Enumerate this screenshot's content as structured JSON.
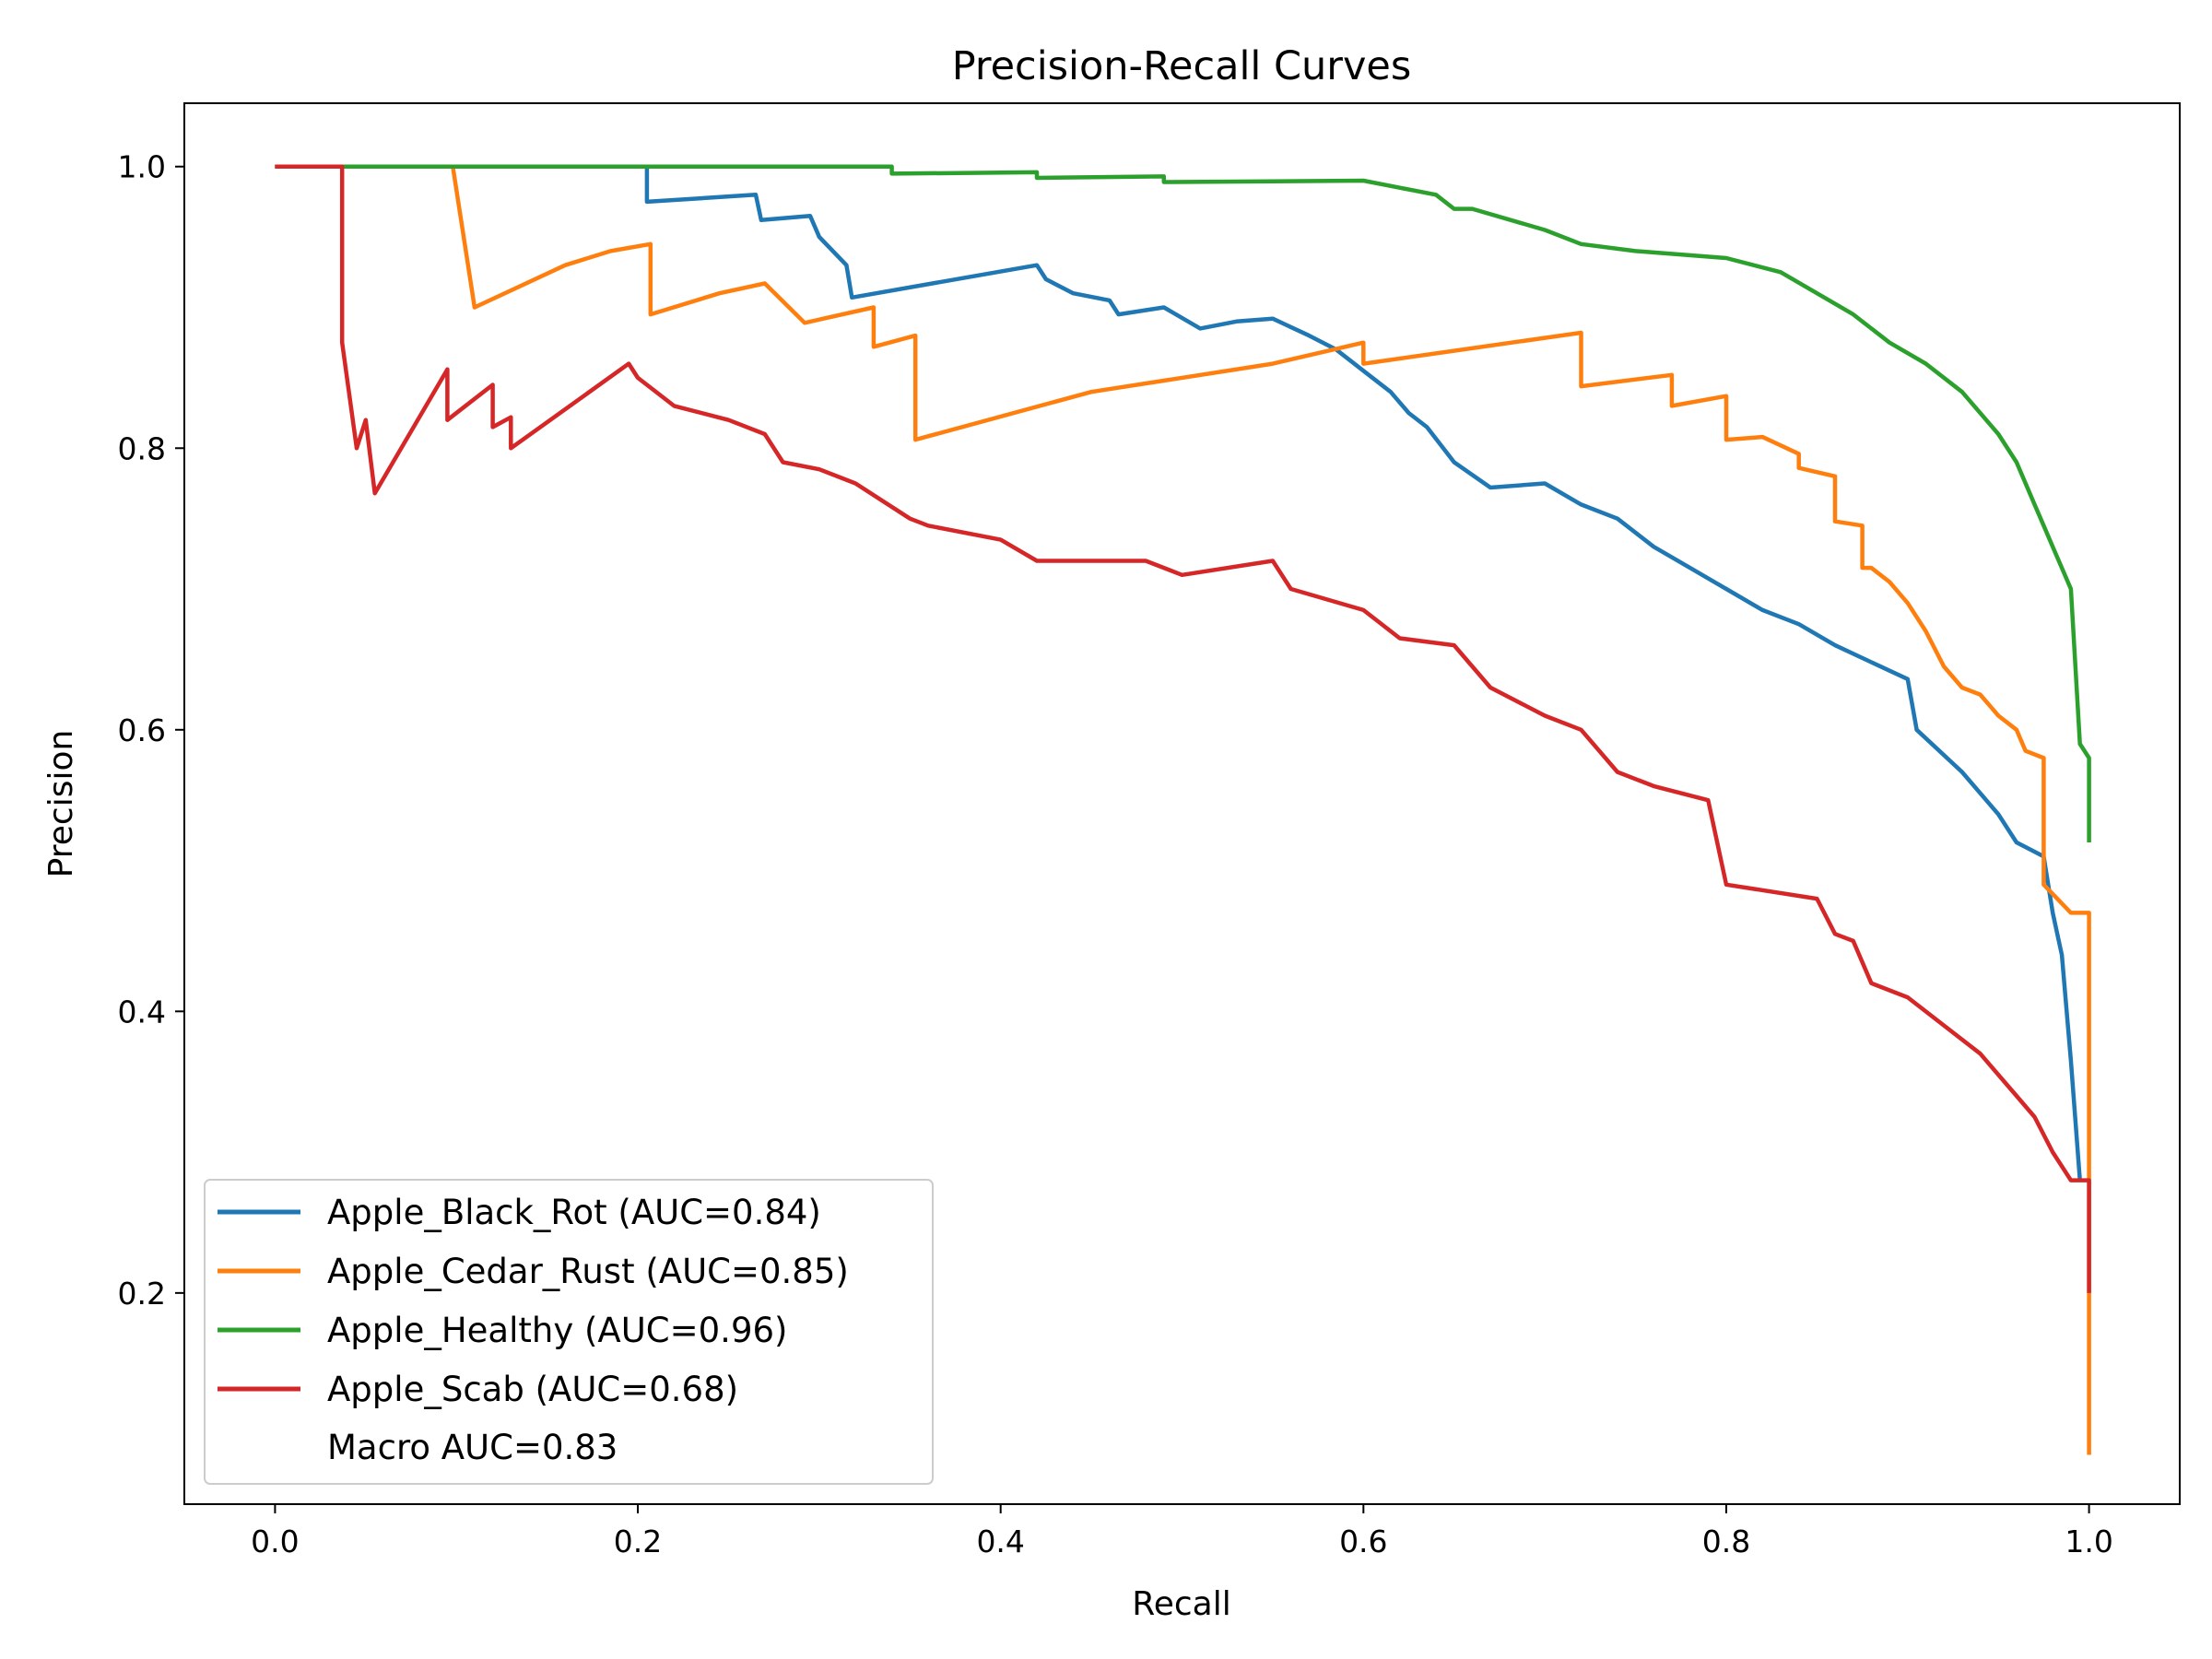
{
  "chart_data": {
    "type": "line",
    "title": "Precision-Recall Curves",
    "xlabel": "Recall",
    "ylabel": "Precision",
    "xlim": [
      -0.05,
      1.05
    ],
    "ylim": [
      0.05,
      1.045
    ],
    "xticks": [
      0.0,
      0.2,
      0.4,
      0.6,
      0.8,
      1.0
    ],
    "xtick_labels": [
      "0.0",
      "0.2",
      "0.4",
      "0.6",
      "0.8",
      "1.0"
    ],
    "yticks": [
      0.2,
      0.4,
      0.6,
      0.8,
      1.0
    ],
    "ytick_labels": [
      "0.2",
      "0.4",
      "0.6",
      "0.8",
      "1.0"
    ],
    "grid": false,
    "legend_position": "lower-left",
    "note": "Macro AUC=0.83",
    "series": [
      {
        "name": "Apple_Black_Rot (AUC=0.84)",
        "color": "#1f77b4",
        "x": [
          0.0,
          0.205,
          0.205,
          0.265,
          0.268,
          0.295,
          0.3,
          0.315,
          0.318,
          0.42,
          0.425,
          0.44,
          0.46,
          0.465,
          0.49,
          0.51,
          0.53,
          0.55,
          0.57,
          0.585,
          0.6,
          0.615,
          0.625,
          0.635,
          0.65,
          0.67,
          0.7,
          0.72,
          0.74,
          0.76,
          0.78,
          0.8,
          0.82,
          0.84,
          0.86,
          0.88,
          0.9,
          0.905,
          0.93,
          0.95,
          0.96,
          0.975,
          0.98,
          0.985,
          0.99,
          0.995
        ],
        "y": [
          1.0,
          1.0,
          0.975,
          0.98,
          0.962,
          0.965,
          0.95,
          0.93,
          0.907,
          0.93,
          0.92,
          0.91,
          0.905,
          0.895,
          0.9,
          0.885,
          0.89,
          0.892,
          0.88,
          0.87,
          0.855,
          0.84,
          0.825,
          0.815,
          0.79,
          0.772,
          0.775,
          0.76,
          0.75,
          0.73,
          0.715,
          0.7,
          0.685,
          0.675,
          0.66,
          0.648,
          0.636,
          0.6,
          0.57,
          0.54,
          0.52,
          0.51,
          0.47,
          0.44,
          0.365,
          0.28
        ]
      },
      {
        "name": "Apple_Cedar_Rust (AUC=0.85)",
        "color": "#ff7f0e",
        "x": [
          0.0,
          0.098,
          0.11,
          0.16,
          0.185,
          0.207,
          0.207,
          0.245,
          0.27,
          0.292,
          0.33,
          0.33,
          0.353,
          0.353,
          0.45,
          0.55,
          0.6,
          0.6,
          0.72,
          0.72,
          0.77,
          0.77,
          0.8,
          0.8,
          0.82,
          0.84,
          0.84,
          0.86,
          0.86,
          0.875,
          0.875,
          0.88,
          0.89,
          0.9,
          0.91,
          0.92,
          0.93,
          0.94,
          0.95,
          0.96,
          0.965,
          0.975,
          0.975,
          0.99,
          1.0,
          1.0
        ],
        "y": [
          1.0,
          1.0,
          0.9,
          0.93,
          0.94,
          0.945,
          0.895,
          0.91,
          0.917,
          0.889,
          0.9,
          0.872,
          0.88,
          0.806,
          0.84,
          0.86,
          0.875,
          0.86,
          0.882,
          0.844,
          0.852,
          0.83,
          0.837,
          0.806,
          0.808,
          0.796,
          0.786,
          0.78,
          0.748,
          0.745,
          0.715,
          0.715,
          0.705,
          0.69,
          0.67,
          0.645,
          0.63,
          0.625,
          0.61,
          0.6,
          0.585,
          0.58,
          0.49,
          0.47,
          0.47,
          0.085
        ]
      },
      {
        "name": "Apple_Healthy (AUC=0.96)",
        "color": "#2ca02c",
        "x": [
          0.0,
          0.34,
          0.34,
          0.42,
          0.42,
          0.49,
          0.49,
          0.6,
          0.62,
          0.64,
          0.65,
          0.66,
          0.7,
          0.72,
          0.75,
          0.8,
          0.83,
          0.85,
          0.87,
          0.89,
          0.91,
          0.93,
          0.95,
          0.96,
          0.97,
          0.975,
          0.98,
          0.99,
          0.995,
          1.0,
          1.0
        ],
        "y": [
          1.0,
          1.0,
          0.995,
          0.996,
          0.992,
          0.993,
          0.989,
          0.99,
          0.985,
          0.98,
          0.97,
          0.97,
          0.955,
          0.945,
          0.94,
          0.935,
          0.925,
          0.91,
          0.895,
          0.875,
          0.86,
          0.84,
          0.81,
          0.79,
          0.76,
          0.745,
          0.73,
          0.7,
          0.59,
          0.58,
          0.52
        ]
      },
      {
        "name": "Apple_Scab (AUC=0.68)",
        "color": "#d62728",
        "x": [
          0.0,
          0.037,
          0.037,
          0.045,
          0.05,
          0.055,
          0.095,
          0.095,
          0.12,
          0.12,
          0.13,
          0.13,
          0.195,
          0.2,
          0.22,
          0.25,
          0.27,
          0.28,
          0.3,
          0.32,
          0.35,
          0.36,
          0.4,
          0.42,
          0.45,
          0.48,
          0.5,
          0.55,
          0.56,
          0.6,
          0.62,
          0.65,
          0.67,
          0.7,
          0.72,
          0.74,
          0.76,
          0.79,
          0.8,
          0.85,
          0.86,
          0.87,
          0.88,
          0.9,
          0.92,
          0.94,
          0.96,
          0.97,
          0.98,
          0.99,
          1.0,
          1.0
        ],
        "y": [
          1.0,
          1.0,
          0.875,
          0.8,
          0.82,
          0.768,
          0.856,
          0.82,
          0.845,
          0.815,
          0.822,
          0.8,
          0.86,
          0.85,
          0.83,
          0.82,
          0.81,
          0.79,
          0.785,
          0.775,
          0.75,
          0.745,
          0.735,
          0.72,
          0.72,
          0.72,
          0.71,
          0.72,
          0.7,
          0.685,
          0.665,
          0.66,
          0.63,
          0.61,
          0.6,
          0.57,
          0.56,
          0.55,
          0.49,
          0.48,
          0.455,
          0.45,
          0.42,
          0.41,
          0.39,
          0.37,
          0.34,
          0.325,
          0.3,
          0.28,
          0.28,
          0.2
        ]
      }
    ]
  }
}
